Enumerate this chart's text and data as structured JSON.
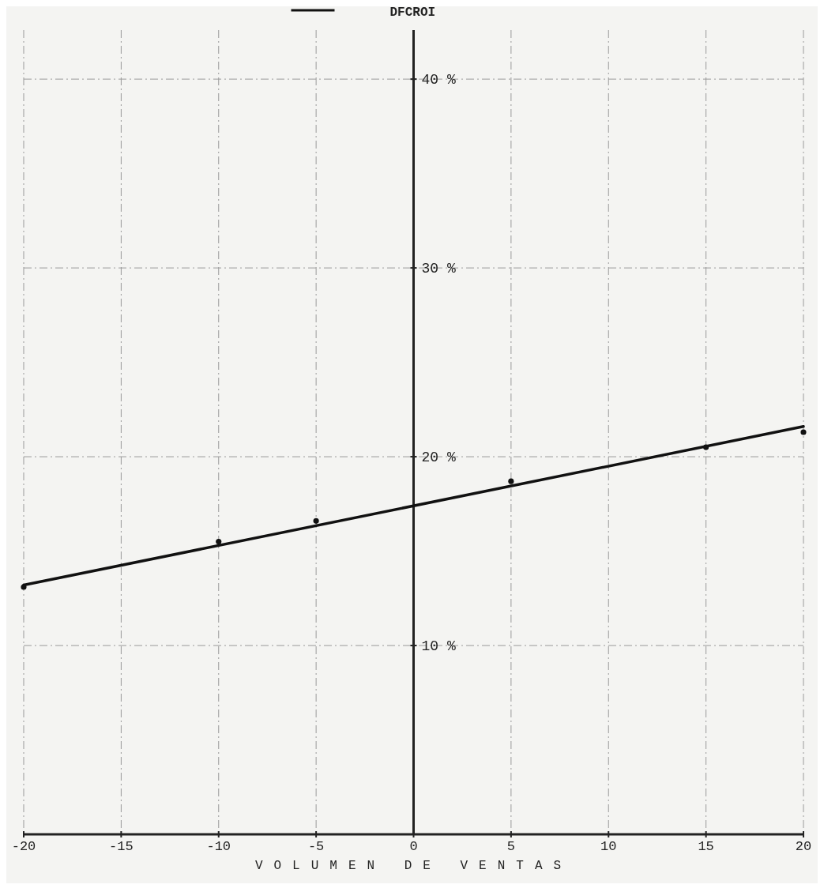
{
  "chart_data": {
    "type": "line",
    "xlabel": "VOLUMEN DE VENTAS",
    "xlim": [
      -20,
      20
    ],
    "xticks": [
      -20,
      -15,
      -10,
      -5,
      0,
      5,
      10,
      15,
      20
    ],
    "ylim": [
      0,
      42.6
    ],
    "yticks": [
      {
        "value": 10,
        "label": "10 %"
      },
      {
        "value": 20,
        "label": "20 %"
      },
      {
        "value": 30,
        "label": "30 %"
      },
      {
        "value": 40,
        "label": "40 %"
      }
    ],
    "grid": true,
    "legend": "top",
    "series": [
      {
        "name": "DFCROI",
        "color": "#111111",
        "x": [
          -20,
          20
        ],
        "values": [
          13.2,
          21.6
        ],
        "marker": "none"
      },
      {
        "type": "scatter",
        "color": "#111111",
        "x": [
          -20,
          -10,
          -5,
          5,
          15,
          20
        ],
        "values": [
          13.1,
          15.5,
          16.6,
          18.7,
          20.5,
          21.3
        ],
        "marker": "circle"
      }
    ]
  }
}
